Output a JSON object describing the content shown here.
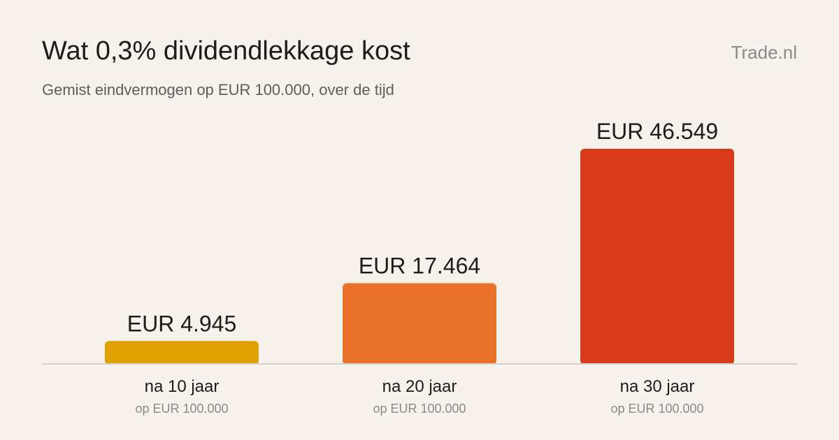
{
  "header": {
    "title": "Wat 0,3% dividendlekkage kost",
    "subtitle": "Gemist eindvermogen op EUR 100.000, over de tijd",
    "brand": "Trade.nl"
  },
  "chart_data": {
    "type": "bar",
    "categories": [
      "na 10 jaar",
      "na 20 jaar",
      "na 30 jaar"
    ],
    "category_sublabels": [
      "op EUR 100.000",
      "op EUR 100.000",
      "op EUR 100.000"
    ],
    "values": [
      4945,
      17464,
      46549
    ],
    "value_labels": [
      "EUR 4.945",
      "EUR 17.464",
      "EUR 46.549"
    ],
    "colors": [
      "#e0a100",
      "#e8712b",
      "#d63a1b"
    ],
    "ylim": [
      0,
      50000
    ],
    "grid": false
  }
}
